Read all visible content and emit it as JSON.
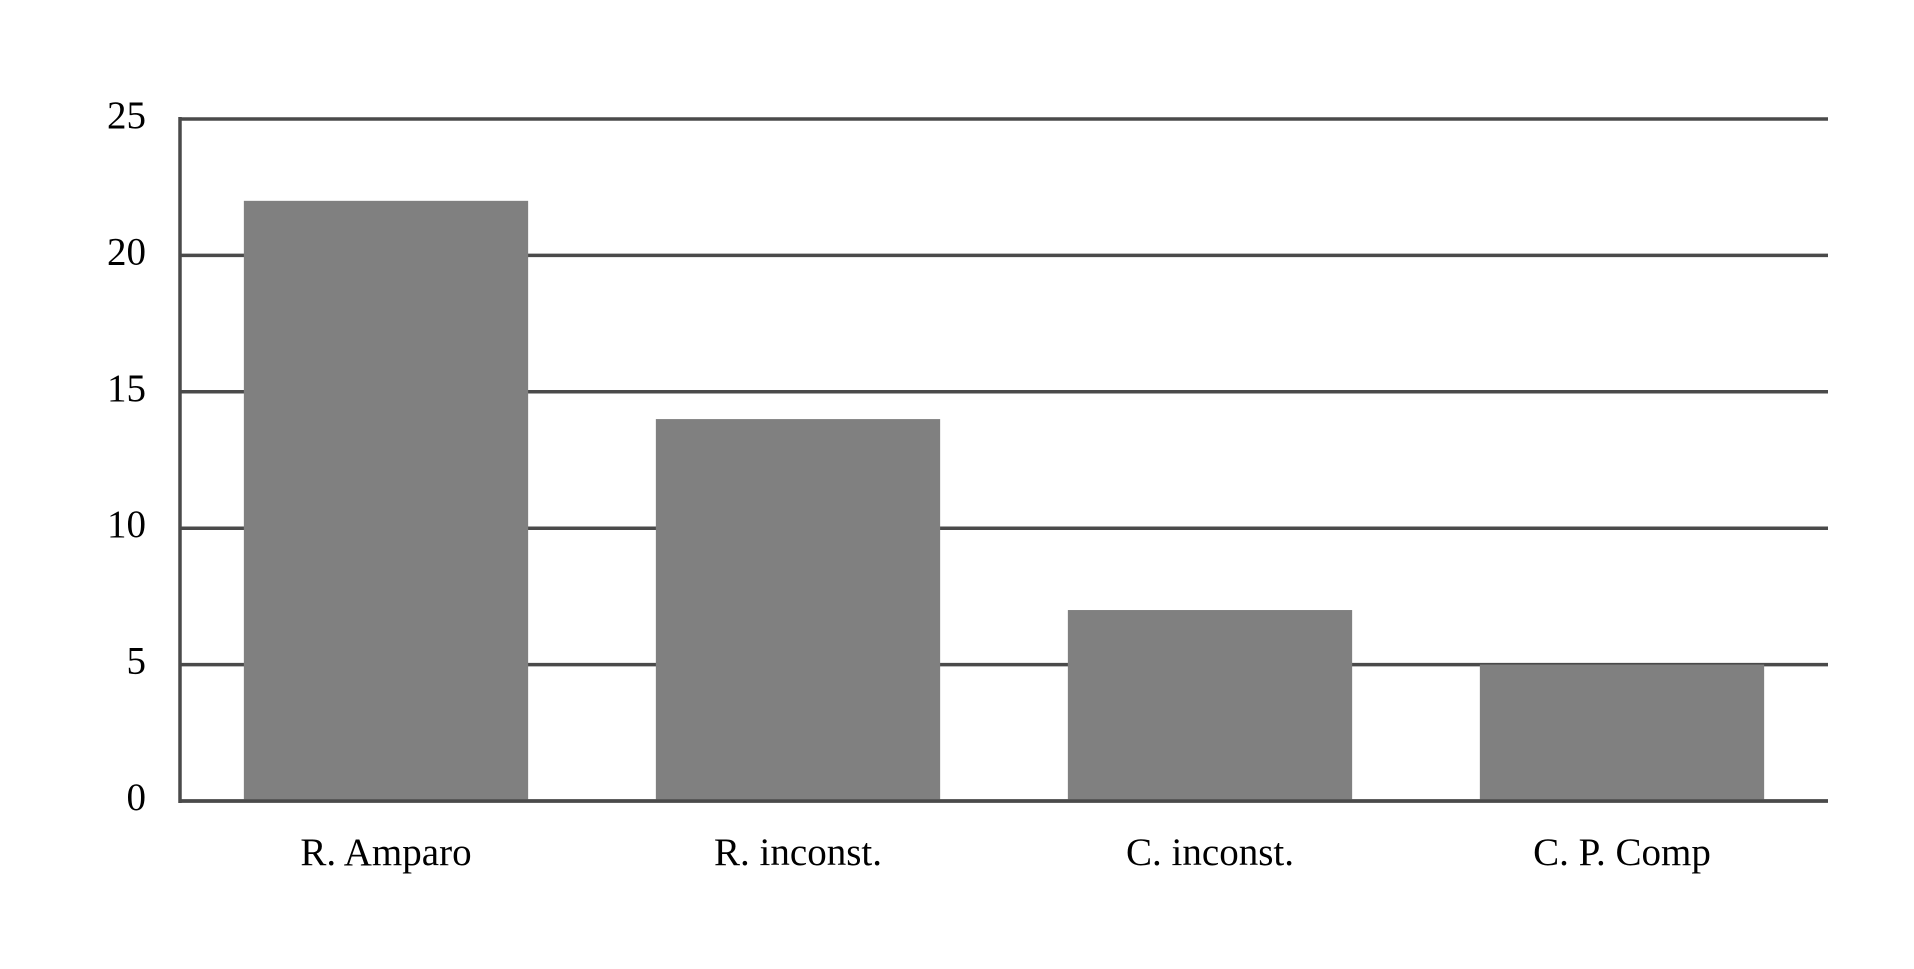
{
  "chart_data": {
    "type": "bar",
    "categories": [
      "R. Amparo",
      "R. inconst.",
      "C. inconst.",
      "C. P. Comp"
    ],
    "values": [
      22,
      14,
      7,
      5
    ],
    "color": "#808080",
    "ylim": [
      0,
      25
    ],
    "yticks": [
      0,
      5,
      10,
      15,
      20,
      25
    ],
    "grid": true
  }
}
